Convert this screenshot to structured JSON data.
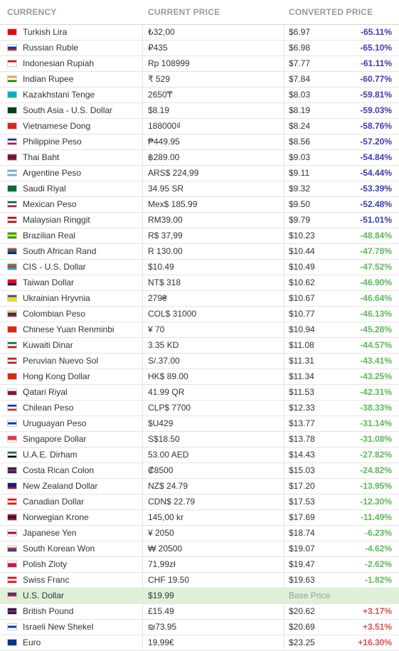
{
  "headers": {
    "currency": "CURRENCY",
    "current_price": "CURRENT PRICE",
    "converted_price": "CONVERTED PRICE"
  },
  "colors": {
    "strong_drop": "#3c3cb4",
    "mild_drop": "#5cb85c",
    "increase": "#d9534f",
    "base_row": "#dff0d8"
  },
  "rows": [
    {
      "currency": "Turkish Lira",
      "price": "₺32,00",
      "converted": "$6.97",
      "change": "-65.11%",
      "kind": "neg-big",
      "flag": [
        "#e30a17",
        "#e30a17",
        "#e30a17"
      ]
    },
    {
      "currency": "Russian Ruble",
      "price": "₽435",
      "converted": "$6.98",
      "change": "-65.10%",
      "kind": "neg-big",
      "flag": [
        "#ffffff",
        "#0039a6",
        "#d52b1e"
      ]
    },
    {
      "currency": "Indonesian Rupiah",
      "price": "Rp 108999",
      "converted": "$7.77",
      "change": "-61.11%",
      "kind": "neg-big",
      "flag": [
        "#e70011",
        "#ffffff",
        "#ffffff"
      ]
    },
    {
      "currency": "Indian Rupee",
      "price": "₹ 529",
      "converted": "$7.84",
      "change": "-60.77%",
      "kind": "neg-big",
      "flag": [
        "#ff9933",
        "#ffffff",
        "#138808"
      ]
    },
    {
      "currency": "Kazakhstani Tenge",
      "price": "2650₸",
      "converted": "$8.03",
      "change": "-59.81%",
      "kind": "neg-big",
      "flag": [
        "#00afca",
        "#00afca",
        "#00afca"
      ]
    },
    {
      "currency": "South Asia - U.S. Dollar",
      "price": "$8.19",
      "converted": "$8.19",
      "change": "-59.03%",
      "kind": "neg-big",
      "flag": [
        "#01411c",
        "#01411c",
        "#01411c"
      ]
    },
    {
      "currency": "Vietnamese Dong",
      "price": "188000₫",
      "converted": "$8.24",
      "change": "-58.76%",
      "kind": "neg-big",
      "flag": [
        "#da251d",
        "#da251d",
        "#da251d"
      ]
    },
    {
      "currency": "Philippine Peso",
      "price": "₱449.95",
      "converted": "$8.56",
      "change": "-57.20%",
      "kind": "neg-big",
      "flag": [
        "#0038a8",
        "#ffffff",
        "#ce1126"
      ]
    },
    {
      "currency": "Thai Baht",
      "price": "฿289.00",
      "converted": "$9.03",
      "change": "-54.84%",
      "kind": "neg-big",
      "flag": [
        "#a51931",
        "#2d2a4a",
        "#a51931"
      ]
    },
    {
      "currency": "Argentine Peso",
      "price": "ARS$ 224,99",
      "converted": "$9.11",
      "change": "-54.44%",
      "kind": "neg-big",
      "flag": [
        "#74acdf",
        "#ffffff",
        "#74acdf"
      ]
    },
    {
      "currency": "Saudi Riyal",
      "price": "34.95 SR",
      "converted": "$9.32",
      "change": "-53.39%",
      "kind": "neg-big",
      "flag": [
        "#006c35",
        "#006c35",
        "#006c35"
      ]
    },
    {
      "currency": "Mexican Peso",
      "price": "Mex$ 185.99",
      "converted": "$9.50",
      "change": "-52.48%",
      "kind": "neg-big",
      "flag": [
        "#006847",
        "#ffffff",
        "#ce1126"
      ]
    },
    {
      "currency": "Malaysian Ringgit",
      "price": "RM39.00",
      "converted": "$9.79",
      "change": "-51.01%",
      "kind": "neg-big",
      "flag": [
        "#cc0001",
        "#ffffff",
        "#cc0001"
      ]
    },
    {
      "currency": "Brazilian Real",
      "price": "R$ 37,99",
      "converted": "$10.23",
      "change": "-48.84%",
      "kind": "neg-small",
      "flag": [
        "#009c3b",
        "#ffdf00",
        "#009c3b"
      ]
    },
    {
      "currency": "South African Rand",
      "price": "R 130.00",
      "converted": "$10.44",
      "change": "-47.78%",
      "kind": "neg-small",
      "flag": [
        "#de3831",
        "#007a4d",
        "#002395"
      ]
    },
    {
      "currency": "CIS - U.S. Dollar",
      "price": "$10.49",
      "converted": "$10.49",
      "change": "-47.52%",
      "kind": "neg-small",
      "flag": [
        "#3f9c35",
        "#ed2939",
        "#00b9e4"
      ]
    },
    {
      "currency": "Taiwan Dollar",
      "price": "NT$ 318",
      "converted": "$10.62",
      "change": "-46.90%",
      "kind": "neg-small",
      "flag": [
        "#fe0000",
        "#fe0000",
        "#000095"
      ]
    },
    {
      "currency": "Ukrainian Hryvnia",
      "price": "279₴",
      "converted": "$10.67",
      "change": "-46.64%",
      "kind": "neg-small",
      "flag": [
        "#0057b7",
        "#ffd700",
        "#ffd700"
      ]
    },
    {
      "currency": "Colombian Peso",
      "price": "COL$ 31000",
      "converted": "$10.77",
      "change": "-46.13%",
      "kind": "neg-small",
      "flag": [
        "#fcd116",
        "#003893",
        "#ce1126"
      ]
    },
    {
      "currency": "Chinese Yuan Renminbi",
      "price": "¥ 70",
      "converted": "$10.94",
      "change": "-45.28%",
      "kind": "neg-small",
      "flag": [
        "#de2910",
        "#de2910",
        "#de2910"
      ]
    },
    {
      "currency": "Kuwaiti Dinar",
      "price": "3.35 KD",
      "converted": "$11.08",
      "change": "-44.57%",
      "kind": "neg-small",
      "flag": [
        "#007a3d",
        "#ffffff",
        "#ce1126"
      ]
    },
    {
      "currency": "Peruvian Nuevo Sol",
      "price": "S/.37.00",
      "converted": "$11.31",
      "change": "-43.41%",
      "kind": "neg-small",
      "flag": [
        "#d91023",
        "#ffffff",
        "#d91023"
      ]
    },
    {
      "currency": "Hong Kong Dollar",
      "price": "HK$ 89.00",
      "converted": "$11.34",
      "change": "-43.25%",
      "kind": "neg-small",
      "flag": [
        "#de2910",
        "#de2910",
        "#de2910"
      ]
    },
    {
      "currency": "Qatari Riyal",
      "price": "41.99 QR",
      "converted": "$11.53",
      "change": "-42.31%",
      "kind": "neg-small",
      "flag": [
        "#ffffff",
        "#8a1538",
        "#8a1538"
      ]
    },
    {
      "currency": "Chilean Peso",
      "price": "CLP$ 7700",
      "converted": "$12.33",
      "change": "-38.33%",
      "kind": "neg-small",
      "flag": [
        "#0039a6",
        "#ffffff",
        "#d52b1e"
      ]
    },
    {
      "currency": "Uruguayan Peso",
      "price": "$U429",
      "converted": "$13.77",
      "change": "-31.14%",
      "kind": "neg-small",
      "flag": [
        "#ffffff",
        "#0038a8",
        "#ffffff"
      ]
    },
    {
      "currency": "Singapore Dollar",
      "price": "S$18.50",
      "converted": "$13.78",
      "change": "-31.08%",
      "kind": "neg-small",
      "flag": [
        "#ef3340",
        "#ef3340",
        "#ffffff"
      ]
    },
    {
      "currency": "U.A.E. Dirham",
      "price": "53.00 AED",
      "converted": "$14.43",
      "change": "-27.82%",
      "kind": "neg-small",
      "flag": [
        "#00732f",
        "#ffffff",
        "#000000"
      ]
    },
    {
      "currency": "Costa Rican Colon",
      "price": "₡8500",
      "converted": "$15.03",
      "change": "-24.82%",
      "kind": "neg-small",
      "flag": [
        "#002b7f",
        "#ce1126",
        "#002b7f"
      ]
    },
    {
      "currency": "New Zealand Dollar",
      "price": "NZ$ 24.79",
      "converted": "$17.20",
      "change": "-13.95%",
      "kind": "neg-small",
      "flag": [
        "#00247d",
        "#00247d",
        "#cc142b"
      ]
    },
    {
      "currency": "Canadian Dollar",
      "price": "CDN$ 22.79",
      "converted": "$17.53",
      "change": "-12.30%",
      "kind": "neg-small",
      "flag": [
        "#ff0000",
        "#ffffff",
        "#ff0000"
      ]
    },
    {
      "currency": "Norwegian Krone",
      "price": "145,00 kr",
      "converted": "$17.69",
      "change": "-11.49%",
      "kind": "neg-small",
      "flag": [
        "#ba0c2f",
        "#00205b",
        "#ba0c2f"
      ]
    },
    {
      "currency": "Japanese Yen",
      "price": "¥ 2050",
      "converted": "$18.74",
      "change": "-6.23%",
      "kind": "neg-small",
      "flag": [
        "#ffffff",
        "#bc002d",
        "#ffffff"
      ]
    },
    {
      "currency": "South Korean Won",
      "price": "₩ 20500",
      "converted": "$19.07",
      "change": "-4.62%",
      "kind": "neg-small",
      "flag": [
        "#ffffff",
        "#cd2e3a",
        "#0047a0"
      ]
    },
    {
      "currency": "Polish Zloty",
      "price": "71,99zł",
      "converted": "$19.47",
      "change": "-2.62%",
      "kind": "neg-small",
      "flag": [
        "#ffffff",
        "#dc143c",
        "#dc143c"
      ]
    },
    {
      "currency": "Swiss Franc",
      "price": "CHF 19.50",
      "converted": "$19.63",
      "change": "-1.82%",
      "kind": "neg-small",
      "flag": [
        "#ff0000",
        "#ffffff",
        "#ff0000"
      ]
    },
    {
      "currency": "U.S. Dollar",
      "price": "$19.99",
      "converted": "Base Price",
      "change": "",
      "kind": "base",
      "flag": [
        "#3c3b6e",
        "#b22234",
        "#ffffff"
      ]
    },
    {
      "currency": "British Pound",
      "price": "£15.49",
      "converted": "$20.62",
      "change": "+3.17%",
      "kind": "pos",
      "flag": [
        "#012169",
        "#c8102e",
        "#012169"
      ]
    },
    {
      "currency": "Israeli New Shekel",
      "price": "₪73.95",
      "converted": "$20.69",
      "change": "+3.51%",
      "kind": "pos",
      "flag": [
        "#ffffff",
        "#0038b8",
        "#ffffff"
      ]
    },
    {
      "currency": "Euro",
      "price": "19,99€",
      "converted": "$23.25",
      "change": "+16.30%",
      "kind": "pos",
      "flag": [
        "#003399",
        "#003399",
        "#003399"
      ]
    }
  ]
}
